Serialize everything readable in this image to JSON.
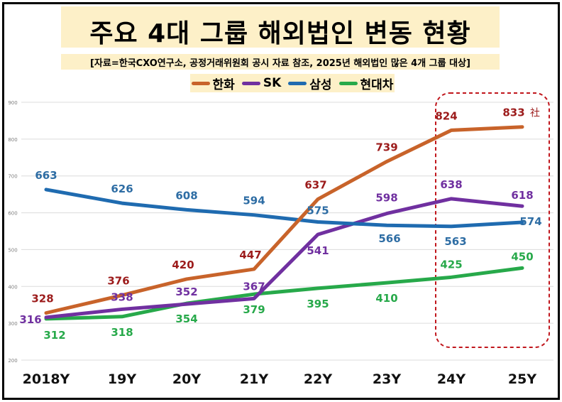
{
  "title": "주요 4대 그룹 해외법인 변동 현황",
  "subtitle": "[자료=한국CXO연구소, 공정거래위원회 공시 자료 참조, 2025년 해외법인 많은 4개 그룹 대상]",
  "colors": {
    "hanwha": "#c8632a",
    "sk": "#7030a0",
    "samsung": "#1f6bb0",
    "hyundai": "#27a94a",
    "highlight": "#c0161c",
    "grid": "#dcdcdc",
    "title_bg": "#fdf0c8"
  },
  "chart_data": {
    "type": "line",
    "title": "주요 4대 그룹 해외법인 변동 현황",
    "subtitle": "[자료=한국CXO연구소, 공정거래위원회 공시 자료 참조, 2025년 해외법인 많은 4개 그룹 대상]",
    "categories": [
      "2018Y",
      "19Y",
      "20Y",
      "21Y",
      "22Y",
      "23Y",
      "24Y",
      "25Y"
    ],
    "ylim": [
      200,
      900
    ],
    "yticks": [
      200,
      300,
      400,
      500,
      600,
      700,
      800,
      900
    ],
    "grid": true,
    "legend_position": "top-center",
    "annotation": "社",
    "series": [
      {
        "name": "한화",
        "key": "hanwha",
        "values": [
          328,
          376,
          420,
          447,
          637,
          739,
          824,
          833
        ]
      },
      {
        "name": "SK",
        "key": "sk",
        "values": [
          316,
          338,
          352,
          367,
          541,
          598,
          638,
          618
        ]
      },
      {
        "name": "삼성",
        "key": "samsung",
        "values": [
          663,
          626,
          608,
          594,
          575,
          566,
          563,
          574
        ]
      },
      {
        "name": "현대차",
        "key": "hyundai",
        "values": [
          312,
          318,
          354,
          379,
          395,
          410,
          425,
          450
        ]
      }
    ]
  }
}
